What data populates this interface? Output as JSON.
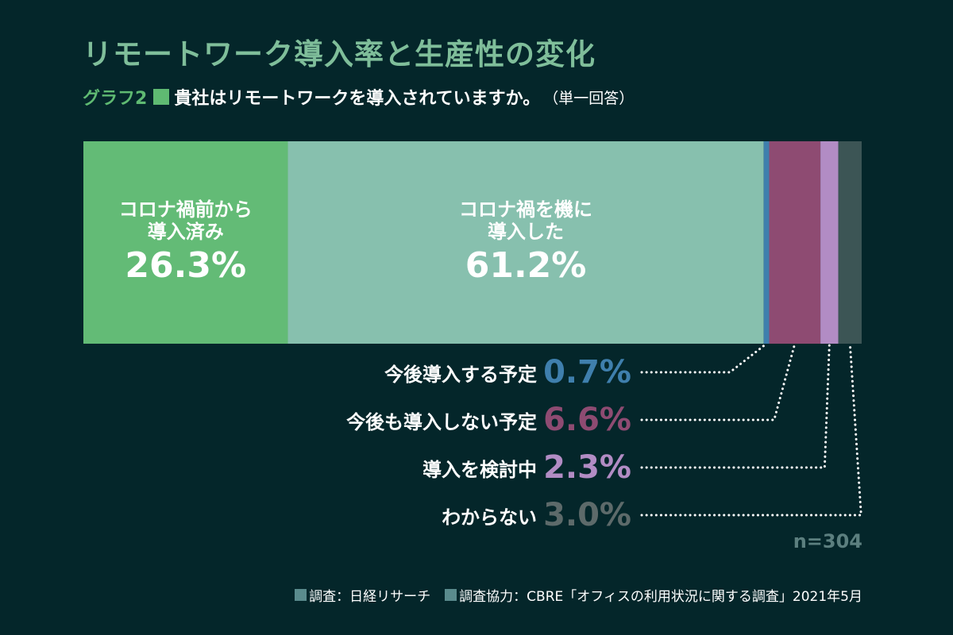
{
  "title": "リモートワーク導入率と生産性の変化",
  "subtitle": {
    "graph_no": "グラフ2",
    "question": "貴社はリモートワークを導入されていますか。",
    "note": "（単一回答）"
  },
  "chart_data": {
    "type": "bar",
    "orientation": "horizontal-stacked",
    "unit": "%",
    "segments": [
      {
        "name": "コロナ禍前から\n導入済み",
        "value": 26.3,
        "display": "26.3%",
        "color": "#63bb76",
        "label_position": "inside"
      },
      {
        "name": "コロナ禍を機に\n導入した",
        "value": 61.2,
        "display": "61.2%",
        "color": "#87c0ae",
        "label_position": "inside"
      },
      {
        "name": "今後導入する予定",
        "value": 0.7,
        "display": "0.7%",
        "color": "#3f7fad",
        "label_position": "callout"
      },
      {
        "name": "今後も導入しない予定",
        "value": 6.6,
        "display": "6.6%",
        "color": "#8e4b72",
        "label_position": "callout"
      },
      {
        "name": "導入を検討中",
        "value": 2.3,
        "display": "2.3%",
        "color": "#b28cc4",
        "label_position": "callout"
      },
      {
        "name": "わからない",
        "value": 3.0,
        "display": "3.0%",
        "color": "#3c5555",
        "label_position": "callout"
      }
    ],
    "n": "n=304"
  },
  "footer": {
    "survey": "調査：日経リサーチ",
    "cooperation": "調査協力：CBRE「オフィスの利用状況に関する調査」2021年5月"
  }
}
